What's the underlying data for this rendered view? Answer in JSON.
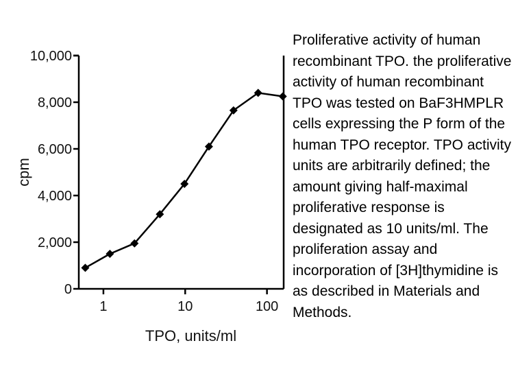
{
  "chart_data": {
    "type": "line",
    "xlabel": "TPO, units/ml",
    "ylabel": "cpm",
    "xscale": "log",
    "xlim": [
      0.5,
      160
    ],
    "ylim": [
      0,
      10000
    ],
    "xticks": [
      1,
      10,
      100
    ],
    "xtick_labels": [
      "1",
      "10",
      "100"
    ],
    "yticks": [
      0,
      2000,
      4000,
      6000,
      8000,
      10000
    ],
    "ytick_labels": [
      "0",
      "2,000",
      "4,000",
      "6,000",
      "8,000",
      "10,000"
    ],
    "grid": false,
    "marker": "diamond",
    "series": [
      {
        "x": [
          0.6,
          1.2,
          2.4,
          4.9,
          9.8,
          19.5,
          39,
          78,
          156
        ],
        "y": [
          900,
          1500,
          1950,
          3200,
          4500,
          6100,
          7650,
          8400,
          8250
        ]
      }
    ]
  },
  "caption": "Proliferative activity of human recombinant TPO. the proliferative activity of human recombinant TPO was tested on BaF3HMPLR cells expressing the P form of the human TPO receptor. TPO activity units are arbitrarily defined; the amount giving half-maximal proliferative response is designated as 10 units/ml. The proliferation assay and incorporation of [3H]thymidine is as described in Materials and Methods."
}
